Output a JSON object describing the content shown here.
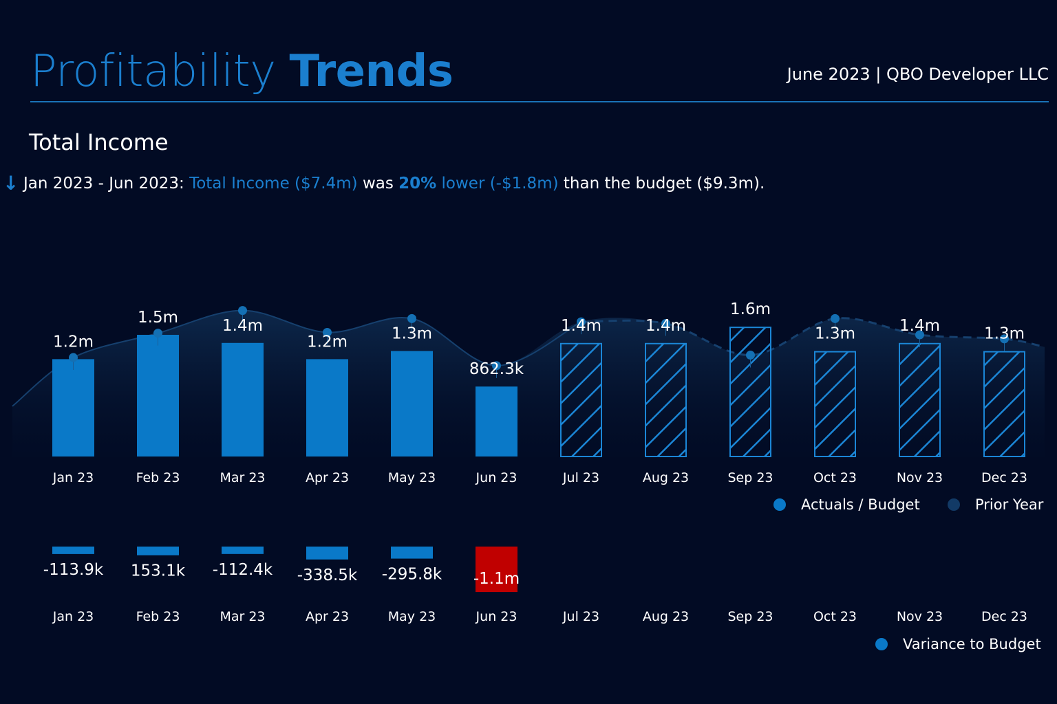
{
  "header": {
    "title_light": "Profitability",
    "title_bold": "Trends",
    "meta": "June 2023 | QBO Developer LLC"
  },
  "section": {
    "title": "Total Income"
  },
  "summary": {
    "period": "Jan 2023 - Jun 2023:",
    "metric": "Total Income ($7.4m)",
    "was": "was",
    "pct": "20%",
    "direction": "lower (-$1.8m)",
    "rest": "than the budget ($9.3m)."
  },
  "colors": {
    "actual": "#0a79c8",
    "budget_hatch": "#1b86d6",
    "prior_year": "#123a66",
    "negative_highlight": "#c00000",
    "accent": "#1b7fcf",
    "background": "#020b24"
  },
  "chart_data": [
    {
      "type": "bar",
      "categories": [
        "Jan 23",
        "Feb 23",
        "Mar 23",
        "Apr 23",
        "May 23",
        "Jun 23",
        "Jul 23",
        "Aug 23",
        "Sep 23",
        "Oct 23",
        "Nov 23",
        "Dec 23"
      ],
      "series": [
        {
          "name": "Actuals / Budget",
          "values": [
            1.2,
            1.5,
            1.4,
            1.2,
            1.3,
            0.8623,
            1.4,
            1.4,
            1.6,
            1.3,
            1.4,
            1.3
          ],
          "labels": [
            "1.2m",
            "1.5m",
            "1.4m",
            "1.2m",
            "1.3m",
            "862.3k",
            "1.4m",
            "1.4m",
            "1.6m",
            "1.3m",
            "1.4m",
            "1.3m"
          ],
          "kind": [
            "actual",
            "actual",
            "actual",
            "actual",
            "actual",
            "actual",
            "budget",
            "budget",
            "budget",
            "budget",
            "budget",
            "budget"
          ]
        },
        {
          "name": "Prior Year",
          "values": [
            1.22,
            1.52,
            1.8,
            1.53,
            1.7,
            1.12,
            1.66,
            1.64,
            1.25,
            1.7,
            1.5,
            1.45
          ]
        }
      ],
      "ylim": [
        0,
        2.25
      ],
      "legend": "bottom-right"
    },
    {
      "type": "bar",
      "categories": [
        "Jan 23",
        "Feb 23",
        "Mar 23",
        "Apr 23",
        "May 23",
        "Jun 23",
        "Jul 23",
        "Aug 23",
        "Sep 23",
        "Oct 23",
        "Nov 23",
        "Dec 23"
      ],
      "series": [
        {
          "name": "Variance to Budget",
          "values": [
            -113.9,
            153.1,
            -112.4,
            -338.5,
            -295.8,
            -1100,
            null,
            null,
            null,
            null,
            null,
            null
          ],
          "labels": [
            "-113.9k",
            "153.1k",
            "-112.4k",
            "-338.5k",
            "-295.8k",
            "-1.1m",
            "",
            "",
            "",
            "",
            "",
            ""
          ]
        }
      ],
      "unit": "k",
      "legend": "bottom-right"
    }
  ]
}
